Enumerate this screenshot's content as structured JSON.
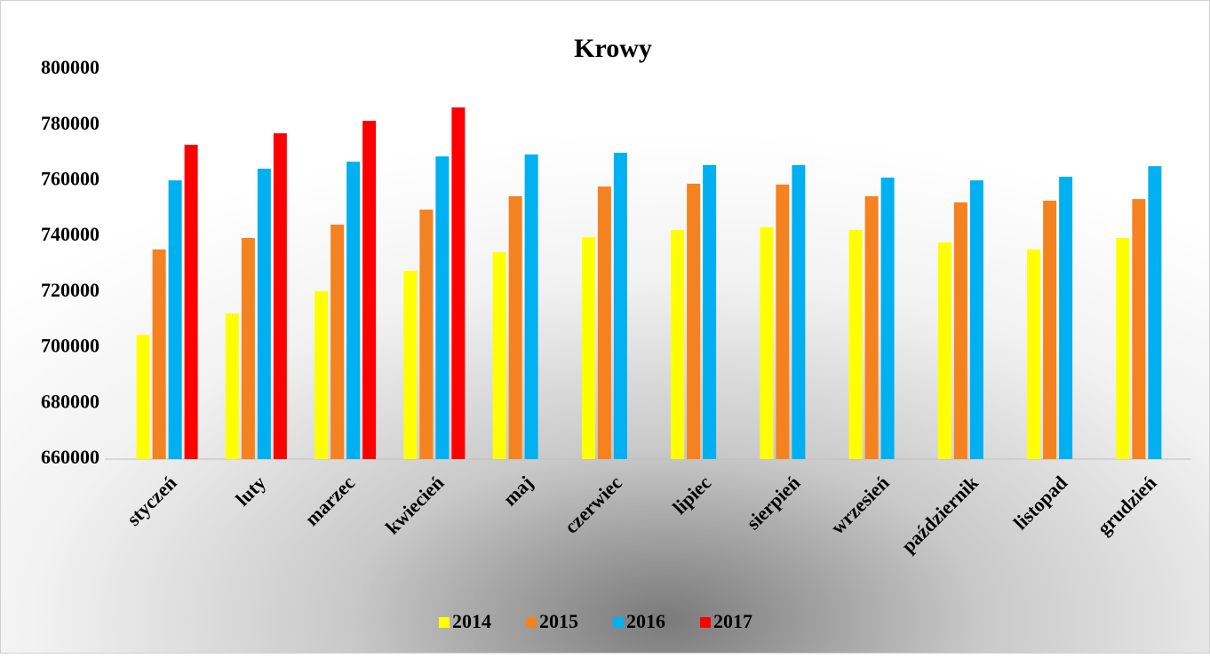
{
  "chart_data": {
    "type": "bar",
    "title": "Krowy",
    "categories": [
      "styczeń",
      "luty",
      "marzec",
      "kwiecień",
      "maj",
      "czerwiec",
      "lipiec",
      "sierpień",
      "wrzesień",
      "październik",
      "listopad",
      "grudzień"
    ],
    "series": [
      {
        "name": "2014",
        "color": "#ffff00",
        "values": [
          704600,
          712300,
          720300,
          727600,
          734300,
          739700,
          742300,
          743300,
          742300,
          737800,
          735300,
          739400
        ]
      },
      {
        "name": "2015",
        "color": "#f58220",
        "values": [
          735300,
          739400,
          744200,
          749600,
          754400,
          757900,
          758900,
          758600,
          754400,
          752200,
          752800,
          753400
        ]
      },
      {
        "name": "2016",
        "color": "#00b0f0",
        "values": [
          760100,
          764300,
          766800,
          768700,
          769400,
          770000,
          765600,
          765600,
          761100,
          760100,
          761400,
          765200
        ]
      },
      {
        "name": "2017",
        "color": "#ff0000",
        "values": [
          772900,
          777000,
          781500,
          786300,
          null,
          null,
          null,
          null,
          null,
          null,
          null,
          null
        ]
      }
    ],
    "ylim": [
      660000,
      800000
    ],
    "yticks": [
      660000,
      680000,
      700000,
      720000,
      740000,
      760000,
      780000,
      800000
    ],
    "grid": false,
    "legend": "bottom"
  }
}
